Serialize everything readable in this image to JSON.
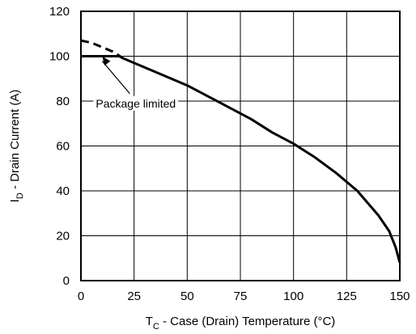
{
  "chart_data": {
    "type": "line",
    "xlabel": {
      "main": "T",
      "sub": "C",
      "rest": " - Case (Drain) Temperature (°C)"
    },
    "ylabel": {
      "main": "I",
      "sub": "D",
      "rest": " - Drain Current (A)"
    },
    "xlim": [
      0,
      150
    ],
    "ylim": [
      0,
      120
    ],
    "xticks": [
      0,
      25,
      50,
      75,
      100,
      125,
      150
    ],
    "yticks": [
      0,
      20,
      40,
      60,
      80,
      100,
      120
    ],
    "grid": true,
    "series": [
      {
        "style": "solid",
        "x": [
          0,
          18,
          20,
          30,
          40,
          50,
          60,
          70,
          80,
          90,
          100,
          110,
          120,
          130,
          140,
          145,
          148,
          150
        ],
        "y": [
          100,
          100,
          99,
          95,
          91,
          87,
          82,
          77,
          72,
          66,
          61,
          55,
          48,
          40,
          29,
          22,
          15,
          8
        ]
      },
      {
        "style": "dashed",
        "x": [
          0,
          5,
          10,
          15,
          20
        ],
        "y": [
          107,
          106,
          104,
          102,
          99
        ]
      }
    ],
    "annotations": [
      {
        "text": "Package limited",
        "x": 7,
        "y": 79,
        "arrow_to": [
          10,
          100
        ]
      }
    ]
  }
}
